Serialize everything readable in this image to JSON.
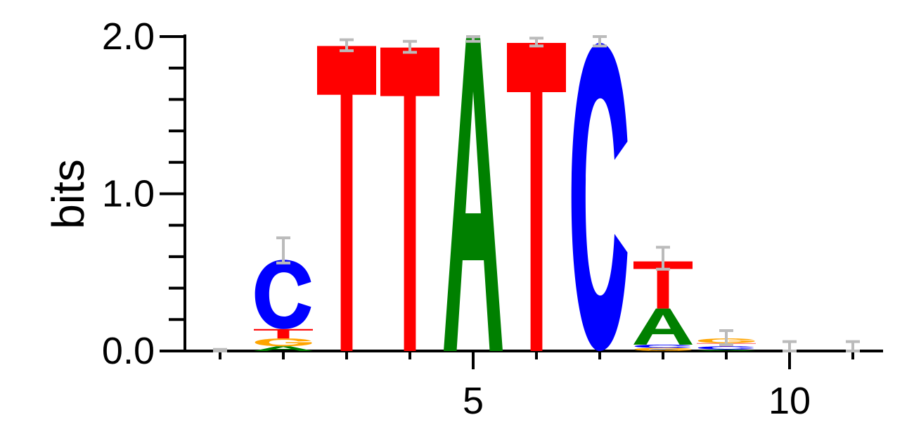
{
  "chart_data": {
    "type": "sequence-logo",
    "ylabel": "bits",
    "ylim": [
      0,
      2.0
    ],
    "y_ticks": [
      {
        "value": 0.0,
        "label": "0.0"
      },
      {
        "value": 1.0,
        "label": "1.0"
      },
      {
        "value": 2.0,
        "label": "2.0"
      }
    ],
    "y_minor_step": 0.2,
    "x_positions": [
      1,
      2,
      3,
      4,
      5,
      6,
      7,
      8,
      9,
      10,
      11
    ],
    "x_tick_labels": [
      {
        "position": 5,
        "label": "5"
      },
      {
        "position": 10,
        "label": "10"
      }
    ],
    "colors": {
      "A": "#008000",
      "C": "#0000ff",
      "G": "#ffa500",
      "T": "#ff0000",
      "error_bar": "#bbbbbb"
    },
    "columns": [
      {
        "position": 1,
        "stack": [],
        "error": [
          0.0,
          0.01
        ]
      },
      {
        "position": 2,
        "stack": [
          {
            "base": "A",
            "height": 0.03
          },
          {
            "base": "G",
            "height": 0.05
          },
          {
            "base": "T",
            "height": 0.06
          },
          {
            "base": "C",
            "height": 0.44
          }
        ],
        "error": [
          0.56,
          0.72
        ]
      },
      {
        "position": 3,
        "stack": [
          {
            "base": "T",
            "height": 1.94
          }
        ],
        "error": [
          1.91,
          1.98
        ]
      },
      {
        "position": 4,
        "stack": [
          {
            "base": "T",
            "height": 1.93
          }
        ],
        "error": [
          1.9,
          1.97
        ]
      },
      {
        "position": 5,
        "stack": [
          {
            "base": "A",
            "height": 1.99
          }
        ],
        "error": [
          1.97,
          2.0
        ]
      },
      {
        "position": 6,
        "stack": [
          {
            "base": "T",
            "height": 1.96
          }
        ],
        "error": [
          1.94,
          1.99
        ]
      },
      {
        "position": 7,
        "stack": [
          {
            "base": "C",
            "height": 1.96
          }
        ],
        "error": [
          1.94,
          2.0
        ]
      },
      {
        "position": 8,
        "stack": [
          {
            "base": "G",
            "height": 0.02
          },
          {
            "base": "C",
            "height": 0.02
          },
          {
            "base": "A",
            "height": 0.23
          },
          {
            "base": "T",
            "height": 0.3
          }
        ],
        "error": [
          0.52,
          0.66
        ]
      },
      {
        "position": 9,
        "stack": [
          {
            "base": "A",
            "height": 0.01
          },
          {
            "base": "C",
            "height": 0.02
          },
          {
            "base": "T",
            "height": 0.02
          },
          {
            "base": "G",
            "height": 0.03
          }
        ],
        "error": [
          0.04,
          0.13
        ]
      },
      {
        "position": 10,
        "stack": [],
        "error": [
          0.0,
          0.06
        ]
      },
      {
        "position": 11,
        "stack": [],
        "error": [
          0.0,
          0.06
        ]
      }
    ]
  }
}
